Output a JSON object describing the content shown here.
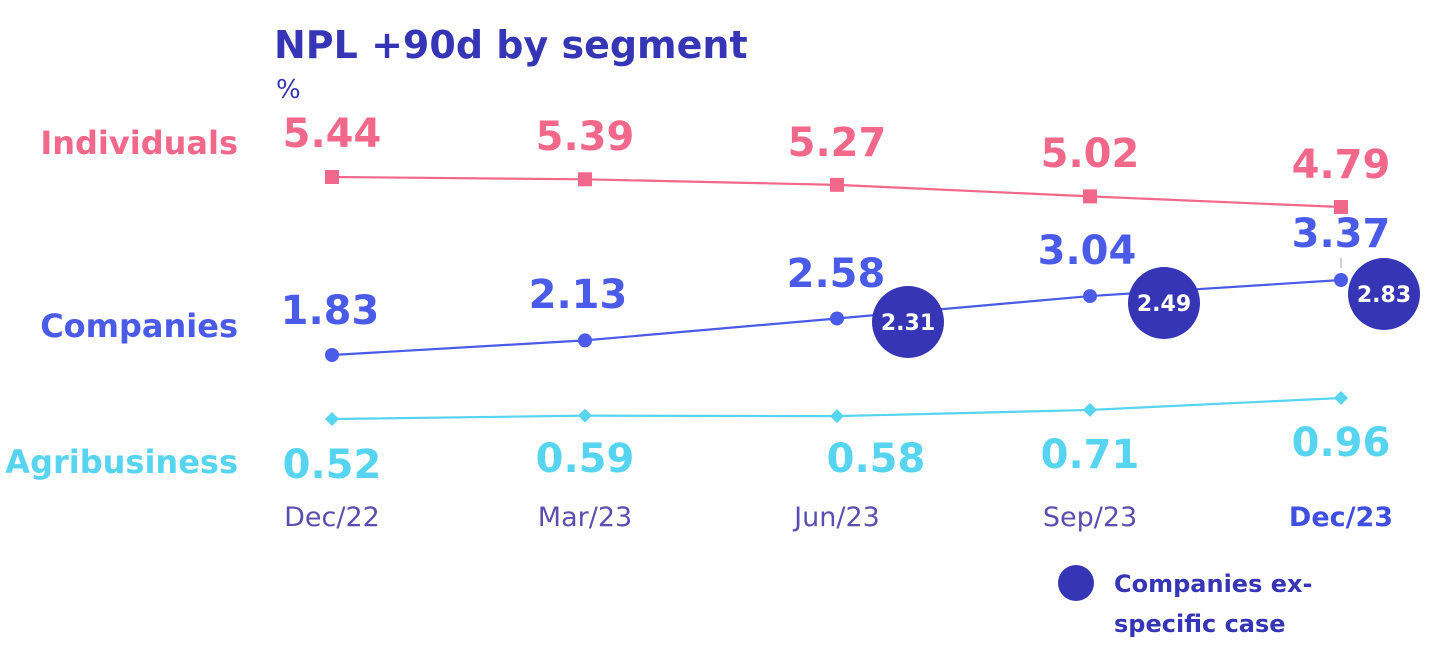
{
  "colors": {
    "title": "#3535b5",
    "individuals": "#f2688a",
    "companies": "#4a5be8",
    "agribusiness": "#56d4f0",
    "companies_ex": "#3535b5",
    "tick": "#5a4fb0",
    "tick_last": "#3f4fe0"
  },
  "chart_data": {
    "type": "line",
    "title": "NPL +90d by segment",
    "ylabel": "%",
    "categories": [
      "Dec/22",
      "Mar/23",
      "Jun/23",
      "Sep/23",
      "Dec/23"
    ],
    "series": [
      {
        "key": "individuals",
        "name": "Individuals",
        "marker": "square",
        "values": [
          5.44,
          5.39,
          5.27,
          5.02,
          4.79
        ],
        "labels": [
          "5.44",
          "5.39",
          "5.27",
          "5.02",
          "4.79"
        ]
      },
      {
        "key": "companies",
        "name": "Companies",
        "marker": "circle",
        "values": [
          1.83,
          2.13,
          2.58,
          3.04,
          3.37
        ],
        "labels": [
          "1.83",
          "2.13",
          "2.58",
          "3.04",
          "3.37"
        ]
      },
      {
        "key": "agribusiness",
        "name": "Agribusiness",
        "marker": "diamond",
        "values": [
          0.52,
          0.59,
          0.58,
          0.71,
          0.96
        ],
        "labels": [
          "0.52",
          "0.59",
          "0.58",
          "0.71",
          "0.96"
        ]
      }
    ],
    "companies_ex_specific_case": {
      "name": "Companies ex-specific case",
      "categories": [
        "Jun/23",
        "Sep/23",
        "Dec/23"
      ],
      "values": [
        2.31,
        2.49,
        2.83
      ],
      "labels": [
        "2.31",
        "2.49",
        "2.83"
      ]
    },
    "legend": {
      "position": "bottom-right",
      "lines": [
        "Companies ex-",
        "specific case"
      ]
    },
    "grid": false
  }
}
